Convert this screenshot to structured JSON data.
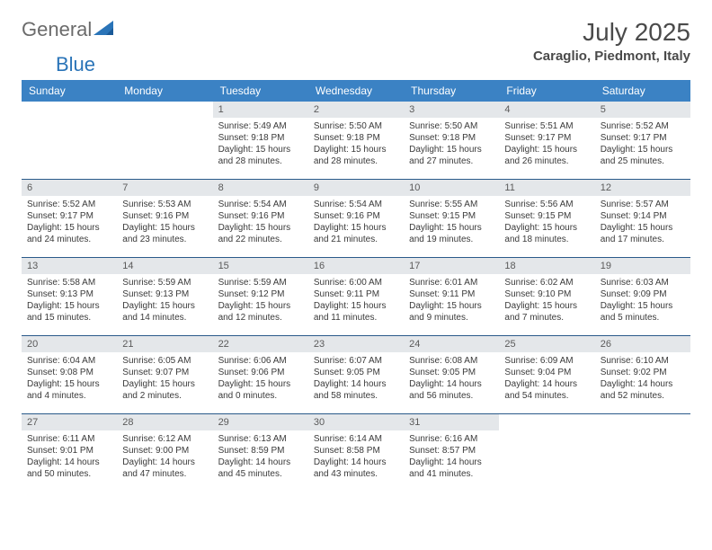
{
  "logo": {
    "part1": "General",
    "part2": "Blue"
  },
  "title": "July 2025",
  "location": "Caraglio, Piedmont, Italy",
  "colors": {
    "header_bg": "#3b82c4",
    "header_text": "#ffffff",
    "daynum_bg": "#e4e7ea",
    "border": "#2a5a8a",
    "logo_gray": "#6b6b6b",
    "logo_blue": "#2a74b8",
    "text": "#3a3a3a"
  },
  "fonts": {
    "title_size": 28,
    "location_size": 15,
    "header_size": 12,
    "cell_size": 10
  },
  "dayNames": [
    "Sunday",
    "Monday",
    "Tuesday",
    "Wednesday",
    "Thursday",
    "Friday",
    "Saturday"
  ],
  "weeks": [
    [
      null,
      null,
      {
        "n": "1",
        "sunrise": "5:49 AM",
        "sunset": "9:18 PM",
        "daylight": "15 hours and 28 minutes."
      },
      {
        "n": "2",
        "sunrise": "5:50 AM",
        "sunset": "9:18 PM",
        "daylight": "15 hours and 28 minutes."
      },
      {
        "n": "3",
        "sunrise": "5:50 AM",
        "sunset": "9:18 PM",
        "daylight": "15 hours and 27 minutes."
      },
      {
        "n": "4",
        "sunrise": "5:51 AM",
        "sunset": "9:17 PM",
        "daylight": "15 hours and 26 minutes."
      },
      {
        "n": "5",
        "sunrise": "5:52 AM",
        "sunset": "9:17 PM",
        "daylight": "15 hours and 25 minutes."
      }
    ],
    [
      {
        "n": "6",
        "sunrise": "5:52 AM",
        "sunset": "9:17 PM",
        "daylight": "15 hours and 24 minutes."
      },
      {
        "n": "7",
        "sunrise": "5:53 AM",
        "sunset": "9:16 PM",
        "daylight": "15 hours and 23 minutes."
      },
      {
        "n": "8",
        "sunrise": "5:54 AM",
        "sunset": "9:16 PM",
        "daylight": "15 hours and 22 minutes."
      },
      {
        "n": "9",
        "sunrise": "5:54 AM",
        "sunset": "9:16 PM",
        "daylight": "15 hours and 21 minutes."
      },
      {
        "n": "10",
        "sunrise": "5:55 AM",
        "sunset": "9:15 PM",
        "daylight": "15 hours and 19 minutes."
      },
      {
        "n": "11",
        "sunrise": "5:56 AM",
        "sunset": "9:15 PM",
        "daylight": "15 hours and 18 minutes."
      },
      {
        "n": "12",
        "sunrise": "5:57 AM",
        "sunset": "9:14 PM",
        "daylight": "15 hours and 17 minutes."
      }
    ],
    [
      {
        "n": "13",
        "sunrise": "5:58 AM",
        "sunset": "9:13 PM",
        "daylight": "15 hours and 15 minutes."
      },
      {
        "n": "14",
        "sunrise": "5:59 AM",
        "sunset": "9:13 PM",
        "daylight": "15 hours and 14 minutes."
      },
      {
        "n": "15",
        "sunrise": "5:59 AM",
        "sunset": "9:12 PM",
        "daylight": "15 hours and 12 minutes."
      },
      {
        "n": "16",
        "sunrise": "6:00 AM",
        "sunset": "9:11 PM",
        "daylight": "15 hours and 11 minutes."
      },
      {
        "n": "17",
        "sunrise": "6:01 AM",
        "sunset": "9:11 PM",
        "daylight": "15 hours and 9 minutes."
      },
      {
        "n": "18",
        "sunrise": "6:02 AM",
        "sunset": "9:10 PM",
        "daylight": "15 hours and 7 minutes."
      },
      {
        "n": "19",
        "sunrise": "6:03 AM",
        "sunset": "9:09 PM",
        "daylight": "15 hours and 5 minutes."
      }
    ],
    [
      {
        "n": "20",
        "sunrise": "6:04 AM",
        "sunset": "9:08 PM",
        "daylight": "15 hours and 4 minutes."
      },
      {
        "n": "21",
        "sunrise": "6:05 AM",
        "sunset": "9:07 PM",
        "daylight": "15 hours and 2 minutes."
      },
      {
        "n": "22",
        "sunrise": "6:06 AM",
        "sunset": "9:06 PM",
        "daylight": "15 hours and 0 minutes."
      },
      {
        "n": "23",
        "sunrise": "6:07 AM",
        "sunset": "9:05 PM",
        "daylight": "14 hours and 58 minutes."
      },
      {
        "n": "24",
        "sunrise": "6:08 AM",
        "sunset": "9:05 PM",
        "daylight": "14 hours and 56 minutes."
      },
      {
        "n": "25",
        "sunrise": "6:09 AM",
        "sunset": "9:04 PM",
        "daylight": "14 hours and 54 minutes."
      },
      {
        "n": "26",
        "sunrise": "6:10 AM",
        "sunset": "9:02 PM",
        "daylight": "14 hours and 52 minutes."
      }
    ],
    [
      {
        "n": "27",
        "sunrise": "6:11 AM",
        "sunset": "9:01 PM",
        "daylight": "14 hours and 50 minutes."
      },
      {
        "n": "28",
        "sunrise": "6:12 AM",
        "sunset": "9:00 PM",
        "daylight": "14 hours and 47 minutes."
      },
      {
        "n": "29",
        "sunrise": "6:13 AM",
        "sunset": "8:59 PM",
        "daylight": "14 hours and 45 minutes."
      },
      {
        "n": "30",
        "sunrise": "6:14 AM",
        "sunset": "8:58 PM",
        "daylight": "14 hours and 43 minutes."
      },
      {
        "n": "31",
        "sunrise": "6:16 AM",
        "sunset": "8:57 PM",
        "daylight": "14 hours and 41 minutes."
      },
      null,
      null
    ]
  ],
  "labels": {
    "sunrise": "Sunrise: ",
    "sunset": "Sunset: ",
    "daylight": "Daylight: "
  }
}
